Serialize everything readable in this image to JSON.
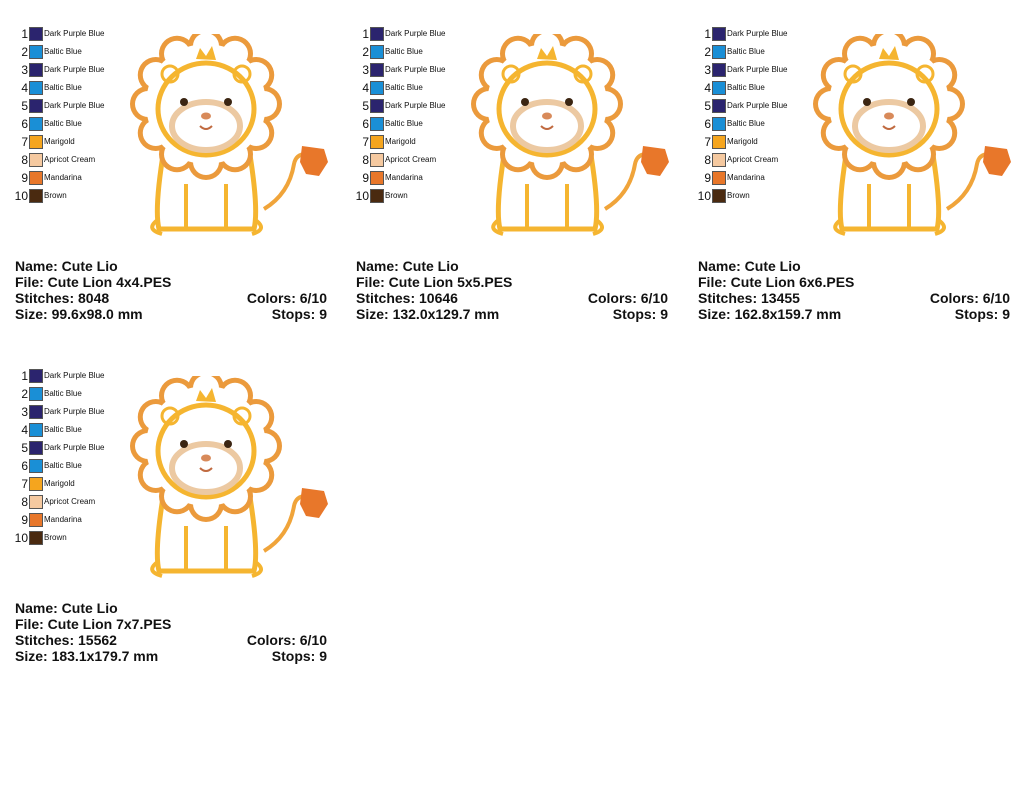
{
  "cards": [
    {
      "colors": [
        {
          "number": 1,
          "name": "Dark Purple Blue",
          "color": "#2b246e"
        },
        {
          "number": 2,
          "name": "Baltic Blue",
          "color": "#1a8fd6"
        },
        {
          "number": 3,
          "name": "Dark Purple Blue",
          "color": "#2b246e"
        },
        {
          "number": 4,
          "name": "Baltic Blue",
          "color": "#1a8fd6"
        },
        {
          "number": 5,
          "name": "Dark Purple Blue",
          "color": "#2b246e"
        },
        {
          "number": 6,
          "name": "Baltic Blue",
          "color": "#1a8fd6"
        },
        {
          "number": 7,
          "name": "Marigold",
          "color": "#f5a51e"
        },
        {
          "number": 8,
          "name": "Apricot Cream",
          "color": "#f5c9a0"
        },
        {
          "number": 9,
          "name": "Mandarina",
          "color": "#e8772a"
        },
        {
          "number": 10,
          "name": "Brown",
          "color": "#4a2a10"
        }
      ],
      "name": "Name: Cute Lio",
      "file": "File: Cute Lion 4x4.PES",
      "stitches": "Stitches: 8048",
      "colors_used": "Colors: 6/10",
      "size": "Size: 99.6x98.0 mm",
      "stops": "Stops: 9"
    },
    {
      "colors": [
        {
          "number": 1,
          "name": "Dark Purple Blue",
          "color": "#2b246e"
        },
        {
          "number": 2,
          "name": "Baltic Blue",
          "color": "#1a8fd6"
        },
        {
          "number": 3,
          "name": "Dark Purple Blue",
          "color": "#2b246e"
        },
        {
          "number": 4,
          "name": "Baltic Blue",
          "color": "#1a8fd6"
        },
        {
          "number": 5,
          "name": "Dark Purple Blue",
          "color": "#2b246e"
        },
        {
          "number": 6,
          "name": "Baltic Blue",
          "color": "#1a8fd6"
        },
        {
          "number": 7,
          "name": "Marigold",
          "color": "#f5a51e"
        },
        {
          "number": 8,
          "name": "Apricot Cream",
          "color": "#f5c9a0"
        },
        {
          "number": 9,
          "name": "Mandarina",
          "color": "#e8772a"
        },
        {
          "number": 10,
          "name": "Brown",
          "color": "#4a2a10"
        }
      ],
      "name": "Name: Cute Lio",
      "file": "File: Cute Lion 5x5.PES",
      "stitches": "Stitches: 10646",
      "colors_used": "Colors: 6/10",
      "size": "Size: 132.0x129.7 mm",
      "stops": "Stops: 9"
    },
    {
      "colors": [
        {
          "number": 1,
          "name": "Dark Purple Blue",
          "color": "#2b246e"
        },
        {
          "number": 2,
          "name": "Baltic Blue",
          "color": "#1a8fd6"
        },
        {
          "number": 3,
          "name": "Dark Purple Blue",
          "color": "#2b246e"
        },
        {
          "number": 4,
          "name": "Baltic Blue",
          "color": "#1a8fd6"
        },
        {
          "number": 5,
          "name": "Dark Purple Blue",
          "color": "#2b246e"
        },
        {
          "number": 6,
          "name": "Baltic Blue",
          "color": "#1a8fd6"
        },
        {
          "number": 7,
          "name": "Marigold",
          "color": "#f5a51e"
        },
        {
          "number": 8,
          "name": "Apricot Cream",
          "color": "#f5c9a0"
        },
        {
          "number": 9,
          "name": "Mandarina",
          "color": "#e8772a"
        },
        {
          "number": 10,
          "name": "Brown",
          "color": "#4a2a10"
        }
      ],
      "name": "Name: Cute Lio",
      "file": "File: Cute Lion 6x6.PES",
      "stitches": "Stitches: 13455",
      "colors_used": "Colors: 6/10",
      "size": "Size: 162.8x159.7 mm",
      "stops": "Stops: 9"
    },
    {
      "colors": [
        {
          "number": 1,
          "name": "Dark Purple Blue",
          "color": "#2b246e"
        },
        {
          "number": 2,
          "name": "Baltic Blue",
          "color": "#1a8fd6"
        },
        {
          "number": 3,
          "name": "Dark Purple Blue",
          "color": "#2b246e"
        },
        {
          "number": 4,
          "name": "Baltic Blue",
          "color": "#1a8fd6"
        },
        {
          "number": 5,
          "name": "Dark Purple Blue",
          "color": "#2b246e"
        },
        {
          "number": 6,
          "name": "Baltic Blue",
          "color": "#1a8fd6"
        },
        {
          "number": 7,
          "name": "Marigold",
          "color": "#f5a51e"
        },
        {
          "number": 8,
          "name": "Apricot Cream",
          "color": "#f5c9a0"
        },
        {
          "number": 9,
          "name": "Mandarina",
          "color": "#e8772a"
        },
        {
          "number": 10,
          "name": "Brown",
          "color": "#4a2a10"
        }
      ],
      "name": "Name: Cute Lio",
      "file": "File: Cute Lion 7x7.PES",
      "stitches": "Stitches: 15562",
      "colors_used": "Colors: 6/10",
      "size": "Size: 183.1x179.7 mm",
      "stops": "Stops: 9"
    }
  ]
}
